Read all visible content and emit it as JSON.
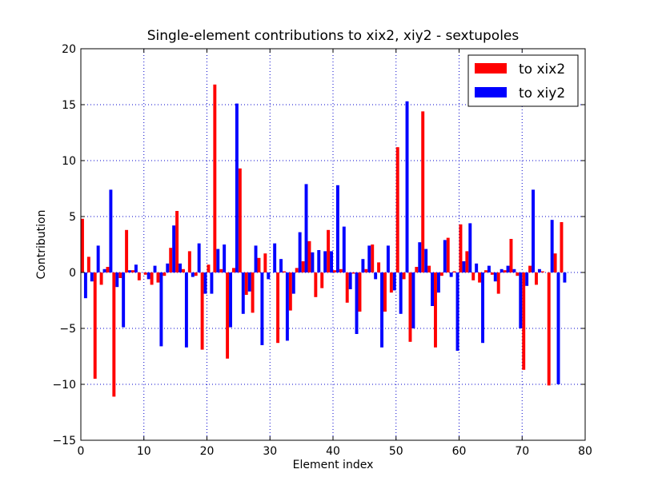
{
  "chart_data": {
    "type": "bar",
    "title": "Single-element contributions to xix2, xiy2 - sextupoles",
    "xlabel": "Element index",
    "ylabel": "Contribution",
    "xlim": [
      0,
      80
    ],
    "ylim": [
      -15,
      20
    ],
    "xticks": [
      0,
      10,
      20,
      30,
      40,
      50,
      60,
      70,
      80
    ],
    "yticks": [
      -15,
      -10,
      -5,
      0,
      5,
      10,
      15,
      20
    ],
    "xtick_labels": [
      "0",
      "10",
      "20",
      "30",
      "40",
      "50",
      "60",
      "70",
      "80"
    ],
    "ytick_labels": [
      "−15",
      "−10",
      "−5",
      "0",
      "5",
      "10",
      "15",
      "20"
    ],
    "grid": true,
    "legend_position": "top-right",
    "x": [
      0,
      1,
      2,
      3,
      4,
      5,
      6,
      7,
      8,
      9,
      10,
      11,
      12,
      13,
      14,
      15,
      16,
      17,
      18,
      19,
      20,
      21,
      22,
      23,
      24,
      25,
      26,
      27,
      28,
      29,
      30,
      31,
      32,
      33,
      34,
      35,
      36,
      37,
      38,
      39,
      40,
      41,
      42,
      43,
      44,
      45,
      46,
      47,
      48,
      49,
      50,
      51,
      52,
      53,
      54,
      55,
      56,
      57,
      58,
      59,
      60,
      61,
      62,
      63,
      64,
      65,
      66,
      67,
      68,
      69,
      70,
      71,
      72,
      73,
      74,
      75,
      76
    ],
    "series": [
      {
        "name": "to xix2",
        "color": "#ff0000",
        "values": [
          4.8,
          1.4,
          -9.5,
          -1.1,
          0.5,
          -11.1,
          -0.5,
          3.8,
          0.2,
          -0.7,
          -0.2,
          -1.1,
          -0.9,
          -0.3,
          2.2,
          5.5,
          0.3,
          1.9,
          -0.3,
          -6.9,
          0.7,
          16.8,
          0.3,
          -7.7,
          0.4,
          9.3,
          -2.0,
          -3.6,
          1.3,
          1.7,
          0.0,
          -6.3,
          0.1,
          -3.4,
          0.4,
          1.0,
          2.8,
          -2.2,
          -1.4,
          3.8,
          0.2,
          0.3,
          -2.7,
          -0.1,
          -3.5,
          0.3,
          2.5,
          0.9,
          -3.5,
          -1.8,
          11.2,
          -0.6,
          -6.2,
          0.5,
          14.4,
          0.6,
          -6.7,
          -0.3,
          3.1,
          0.1,
          4.3,
          1.9,
          -0.7,
          -0.9,
          0.2,
          -0.2,
          -1.9,
          0.2,
          3.0,
          -0.3,
          -8.7,
          0.6,
          -1.1,
          0.1,
          -10.1,
          1.7,
          4.5
        ]
      },
      {
        "name": "to xiy2",
        "color": "#0000ff",
        "values": [
          -2.3,
          -0.8,
          2.4,
          0.3,
          7.4,
          -1.3,
          -4.9,
          0.2,
          0.7,
          0.0,
          -0.6,
          0.6,
          -6.6,
          0.8,
          4.2,
          0.8,
          -6.7,
          -0.4,
          2.6,
          -1.9,
          -1.9,
          2.1,
          2.5,
          -4.9,
          15.1,
          -3.7,
          -1.7,
          2.4,
          -6.5,
          -0.6,
          2.6,
          1.2,
          -6.1,
          -1.9,
          3.6,
          7.9,
          1.8,
          2.0,
          1.9,
          1.9,
          7.8,
          4.1,
          -1.5,
          -5.5,
          1.2,
          2.4,
          -0.6,
          -6.7,
          2.4,
          -1.6,
          -3.7,
          15.3,
          -5.0,
          2.7,
          2.1,
          -3.0,
          -1.8,
          2.9,
          -0.4,
          -7.0,
          1.0,
          4.4,
          0.8,
          -6.3,
          0.6,
          -0.8,
          0.3,
          0.6,
          0.3,
          -5.0,
          -1.2,
          7.4,
          0.3,
          0.0,
          4.7,
          -10.0,
          -0.9
        ]
      }
    ]
  }
}
